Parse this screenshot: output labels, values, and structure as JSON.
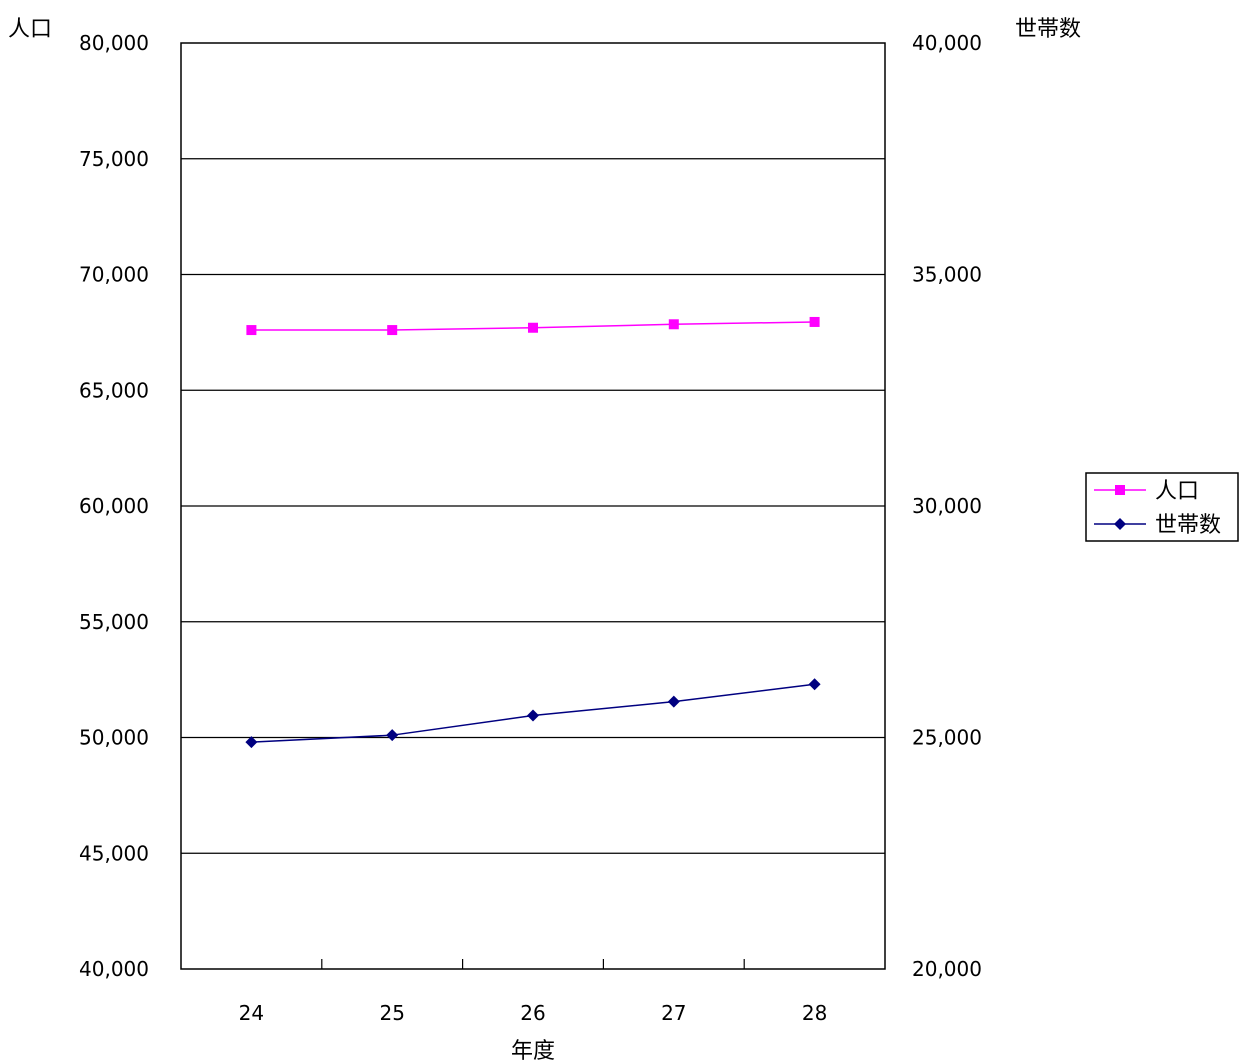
{
  "chart_data": {
    "type": "line",
    "categories": [
      "24",
      "25",
      "26",
      "27",
      "28"
    ],
    "xlabel": "年度",
    "ylabel_left": "人口",
    "ylabel_right": "世帯数",
    "ylim_left": [
      40000,
      80000
    ],
    "ylim_right": [
      20000,
      40000
    ],
    "yticks_left": [
      "40,000",
      "45,000",
      "50,000",
      "55,000",
      "60,000",
      "65,000",
      "70,000",
      "75,000",
      "80,000"
    ],
    "yticks_right": [
      "20,000",
      "25,000",
      "30,000",
      "35,000",
      "40,000"
    ],
    "grid": true,
    "legend_position": "right",
    "series": [
      {
        "name": "人口",
        "axis": "left",
        "color": "#ff00ff",
        "marker": "square",
        "values": [
          67600,
          67600,
          67700,
          67850,
          67950
        ]
      },
      {
        "name": "世帯数",
        "axis": "right",
        "color": "#000080",
        "marker": "diamond",
        "values": [
          24900,
          25050,
          25475,
          25775,
          26150
        ]
      }
    ]
  }
}
